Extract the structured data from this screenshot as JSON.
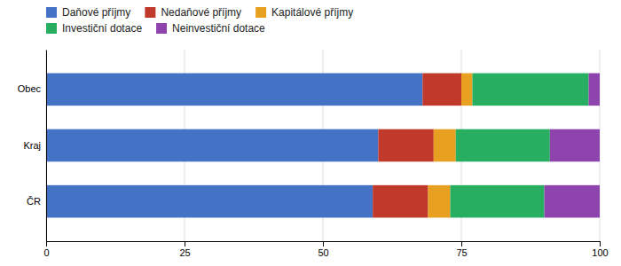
{
  "chart_data": {
    "type": "bar",
    "orientation": "horizontal",
    "stacked": true,
    "categories": [
      "ČR",
      "Kraj",
      "Obec"
    ],
    "series": [
      {
        "name": "Daňové příjmy",
        "color": "#4472C4",
        "values": [
          59,
          60,
          68
        ]
      },
      {
        "name": "Nedaňové příjmy",
        "color": "#C0392B",
        "values": [
          10,
          10,
          7
        ]
      },
      {
        "name": "Kapitálové příjmy",
        "color": "#E8A020",
        "values": [
          4,
          4,
          2
        ]
      },
      {
        "name": "Investiční dotace",
        "color": "#27AE60",
        "values": [
          17,
          17,
          21
        ]
      },
      {
        "name": "Neinvestiční dotace",
        "color": "#8E44AD",
        "values": [
          10,
          9,
          2
        ]
      }
    ],
    "xlim": [
      0,
      100
    ],
    "xticks": [
      0,
      25,
      50,
      75,
      100
    ],
    "grid": true,
    "legend": "top"
  }
}
